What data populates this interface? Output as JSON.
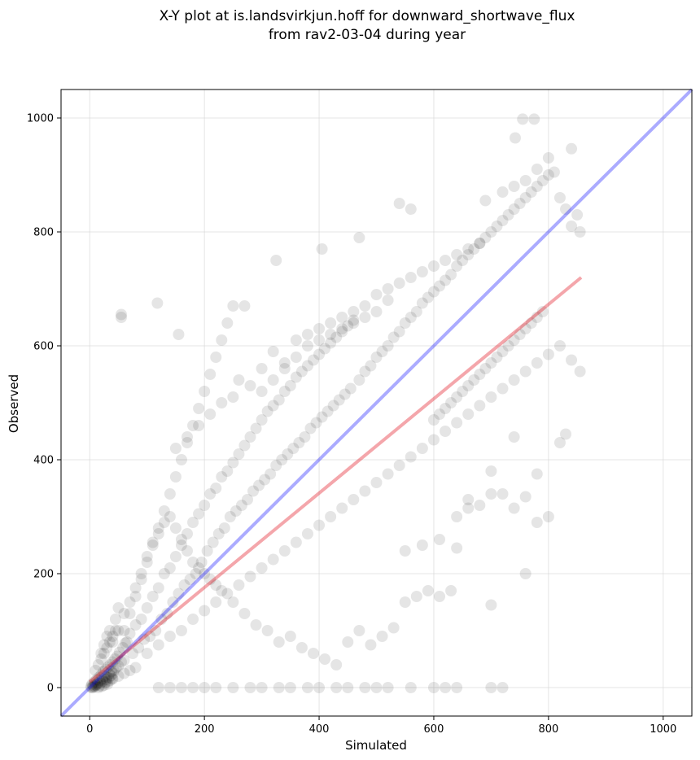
{
  "chart_data": {
    "type": "scatter",
    "title_line1": "X-Y plot at is.landsvirkjun.hoff for downward_shortwave_flux",
    "title_line2": "from rav2-03-04 during year",
    "xlabel": "Simulated",
    "ylabel": "Observed",
    "xlim": [
      -50,
      1050
    ],
    "ylim": [
      -50,
      1050
    ],
    "xticks": [
      0,
      200,
      400,
      600,
      800,
      1000
    ],
    "yticks": [
      0,
      200,
      400,
      600,
      800,
      1000
    ],
    "grid": true,
    "colors": {
      "points": "#000000",
      "identity_line": "#0000ff",
      "fit_line": "#e0000f"
    },
    "identity_line": {
      "x": [
        -50,
        1050
      ],
      "y": [
        -50,
        1050
      ]
    },
    "fit_line": {
      "x": [
        0,
        857
      ],
      "y": [
        10,
        720
      ]
    },
    "points": [
      [
        2,
        2
      ],
      [
        4,
        6
      ],
      [
        6,
        3
      ],
      [
        8,
        10
      ],
      [
        10,
        5
      ],
      [
        12,
        14
      ],
      [
        14,
        8
      ],
      [
        16,
        18
      ],
      [
        18,
        12
      ],
      [
        20,
        22
      ],
      [
        22,
        15
      ],
      [
        24,
        28
      ],
      [
        26,
        20
      ],
      [
        28,
        32
      ],
      [
        30,
        18
      ],
      [
        32,
        36
      ],
      [
        34,
        24
      ],
      [
        36,
        40
      ],
      [
        38,
        28
      ],
      [
        40,
        45
      ],
      [
        42,
        30
      ],
      [
        44,
        50
      ],
      [
        46,
        35
      ],
      [
        48,
        55
      ],
      [
        50,
        38
      ],
      [
        52,
        62
      ],
      [
        55,
        45
      ],
      [
        58,
        70
      ],
      [
        60,
        48
      ],
      [
        62,
        78
      ],
      [
        3,
        0
      ],
      [
        5,
        0
      ],
      [
        7,
        1
      ],
      [
        9,
        2
      ],
      [
        11,
        4
      ],
      [
        13,
        6
      ],
      [
        15,
        0
      ],
      [
        17,
        3
      ],
      [
        19,
        8
      ],
      [
        21,
        2
      ],
      [
        23,
        11
      ],
      [
        25,
        4
      ],
      [
        27,
        9
      ],
      [
        29,
        14
      ],
      [
        31,
        6
      ],
      [
        33,
        17
      ],
      [
        35,
        12
      ],
      [
        37,
        21
      ],
      [
        39,
        16
      ],
      [
        41,
        25
      ],
      [
        65,
        80
      ],
      [
        70,
        95
      ],
      [
        75,
        60
      ],
      [
        80,
        110
      ],
      [
        85,
        70
      ],
      [
        90,
        120
      ],
      [
        95,
        85
      ],
      [
        100,
        140
      ],
      [
        105,
        90
      ],
      [
        110,
        160
      ],
      [
        115,
        100
      ],
      [
        120,
        175
      ],
      [
        125,
        120
      ],
      [
        130,
        200
      ],
      [
        135,
        130
      ],
      [
        140,
        210
      ],
      [
        145,
        150
      ],
      [
        150,
        230
      ],
      [
        155,
        165
      ],
      [
        160,
        250
      ],
      [
        165,
        180
      ],
      [
        170,
        270
      ],
      [
        175,
        190
      ],
      [
        180,
        290
      ],
      [
        185,
        200
      ],
      [
        190,
        305
      ],
      [
        195,
        220
      ],
      [
        200,
        320
      ],
      [
        205,
        240
      ],
      [
        210,
        340
      ],
      [
        215,
        255
      ],
      [
        220,
        350
      ],
      [
        225,
        270
      ],
      [
        230,
        370
      ],
      [
        235,
        280
      ],
      [
        240,
        380
      ],
      [
        245,
        300
      ],
      [
        250,
        395
      ],
      [
        255,
        310
      ],
      [
        260,
        410
      ],
      [
        265,
        320
      ],
      [
        270,
        425
      ],
      [
        275,
        330
      ],
      [
        280,
        440
      ],
      [
        285,
        345
      ],
      [
        290,
        455
      ],
      [
        295,
        355
      ],
      [
        300,
        470
      ],
      [
        305,
        365
      ],
      [
        310,
        485
      ],
      [
        315,
        375
      ],
      [
        320,
        495
      ],
      [
        325,
        390
      ],
      [
        330,
        505
      ],
      [
        335,
        400
      ],
      [
        340,
        520
      ],
      [
        345,
        410
      ],
      [
        350,
        530
      ],
      [
        355,
        420
      ],
      [
        360,
        545
      ],
      [
        365,
        430
      ],
      [
        370,
        555
      ],
      [
        375,
        440
      ],
      [
        380,
        565
      ],
      [
        385,
        455
      ],
      [
        390,
        575
      ],
      [
        395,
        465
      ],
      [
        400,
        585
      ],
      [
        405,
        475
      ],
      [
        410,
        595
      ],
      [
        415,
        485
      ],
      [
        420,
        605
      ],
      [
        425,
        495
      ],
      [
        430,
        615
      ],
      [
        435,
        505
      ],
      [
        440,
        625
      ],
      [
        445,
        515
      ],
      [
        450,
        635
      ],
      [
        455,
        525
      ],
      [
        460,
        645
      ],
      [
        470,
        540
      ],
      [
        480,
        555
      ],
      [
        490,
        565
      ],
      [
        500,
        580
      ],
      [
        510,
        590
      ],
      [
        520,
        600
      ],
      [
        530,
        615
      ],
      [
        540,
        625
      ],
      [
        550,
        640
      ],
      [
        560,
        650
      ],
      [
        570,
        660
      ],
      [
        580,
        675
      ],
      [
        590,
        685
      ],
      [
        600,
        695
      ],
      [
        610,
        705
      ],
      [
        620,
        715
      ],
      [
        630,
        725
      ],
      [
        640,
        740
      ],
      [
        650,
        750
      ],
      [
        660,
        760
      ],
      [
        670,
        770
      ],
      [
        680,
        780
      ],
      [
        690,
        790
      ],
      [
        700,
        800
      ],
      [
        710,
        810
      ],
      [
        720,
        820
      ],
      [
        730,
        830
      ],
      [
        740,
        840
      ],
      [
        750,
        850
      ],
      [
        760,
        860
      ],
      [
        770,
        870
      ],
      [
        780,
        880
      ],
      [
        790,
        890
      ],
      [
        800,
        900
      ],
      [
        810,
        905
      ],
      [
        820,
        860
      ],
      [
        830,
        840
      ],
      [
        840,
        810
      ],
      [
        850,
        830
      ],
      [
        855,
        800
      ],
      [
        100,
        60
      ],
      [
        120,
        75
      ],
      [
        140,
        90
      ],
      [
        160,
        100
      ],
      [
        180,
        120
      ],
      [
        200,
        135
      ],
      [
        220,
        150
      ],
      [
        240,
        165
      ],
      [
        260,
        180
      ],
      [
        280,
        195
      ],
      [
        300,
        210
      ],
      [
        320,
        225
      ],
      [
        340,
        240
      ],
      [
        360,
        255
      ],
      [
        380,
        270
      ],
      [
        400,
        285
      ],
      [
        420,
        300
      ],
      [
        440,
        315
      ],
      [
        460,
        330
      ],
      [
        480,
        345
      ],
      [
        500,
        360
      ],
      [
        520,
        375
      ],
      [
        540,
        390
      ],
      [
        560,
        405
      ],
      [
        580,
        420
      ],
      [
        600,
        435
      ],
      [
        620,
        450
      ],
      [
        640,
        465
      ],
      [
        660,
        480
      ],
      [
        680,
        495
      ],
      [
        700,
        510
      ],
      [
        720,
        525
      ],
      [
        740,
        540
      ],
      [
        760,
        555
      ],
      [
        780,
        570
      ],
      [
        800,
        585
      ],
      [
        820,
        600
      ],
      [
        840,
        575
      ],
      [
        855,
        555
      ],
      [
        830,
        445
      ],
      [
        60,
        100
      ],
      [
        70,
        130
      ],
      [
        80,
        160
      ],
      [
        90,
        190
      ],
      [
        100,
        220
      ],
      [
        110,
        250
      ],
      [
        120,
        280
      ],
      [
        130,
        310
      ],
      [
        140,
        340
      ],
      [
        150,
        370
      ],
      [
        160,
        400
      ],
      [
        170,
        430
      ],
      [
        180,
        460
      ],
      [
        190,
        490
      ],
      [
        200,
        520
      ],
      [
        210,
        550
      ],
      [
        220,
        580
      ],
      [
        230,
        610
      ],
      [
        240,
        640
      ],
      [
        250,
        670
      ],
      [
        55,
        655
      ],
      [
        55,
        650
      ],
      [
        118,
        675
      ],
      [
        155,
        620
      ],
      [
        270,
        670
      ],
      [
        325,
        750
      ],
      [
        405,
        770
      ],
      [
        470,
        790
      ],
      [
        540,
        850
      ],
      [
        560,
        840
      ],
      [
        690,
        855
      ],
      [
        720,
        870
      ],
      [
        740,
        880
      ],
      [
        760,
        890
      ],
      [
        780,
        910
      ],
      [
        800,
        930
      ],
      [
        840,
        946
      ],
      [
        742,
        965
      ],
      [
        755,
        998
      ],
      [
        775,
        998
      ],
      [
        40,
        80
      ],
      [
        50,
        100
      ],
      [
        60,
        130
      ],
      [
        70,
        150
      ],
      [
        80,
        175
      ],
      [
        90,
        200
      ],
      [
        100,
        230
      ],
      [
        110,
        255
      ],
      [
        120,
        270
      ],
      [
        130,
        290
      ],
      [
        140,
        300
      ],
      [
        150,
        280
      ],
      [
        160,
        260
      ],
      [
        170,
        240
      ],
      [
        180,
        220
      ],
      [
        190,
        210
      ],
      [
        200,
        200
      ],
      [
        210,
        190
      ],
      [
        220,
        180
      ],
      [
        230,
        170
      ],
      [
        250,
        150
      ],
      [
        270,
        130
      ],
      [
        290,
        110
      ],
      [
        310,
        100
      ],
      [
        330,
        80
      ],
      [
        350,
        90
      ],
      [
        370,
        70
      ],
      [
        390,
        60
      ],
      [
        410,
        50
      ],
      [
        430,
        40
      ],
      [
        450,
        80
      ],
      [
        470,
        100
      ],
      [
        490,
        75
      ],
      [
        510,
        90
      ],
      [
        530,
        105
      ],
      [
        550,
        150
      ],
      [
        570,
        160
      ],
      [
        590,
        170
      ],
      [
        610,
        160
      ],
      [
        630,
        170
      ],
      [
        120,
        0
      ],
      [
        140,
        0
      ],
      [
        160,
        0
      ],
      [
        180,
        0
      ],
      [
        200,
        0
      ],
      [
        220,
        0
      ],
      [
        250,
        0
      ],
      [
        280,
        0
      ],
      [
        300,
        0
      ],
      [
        330,
        0
      ],
      [
        350,
        0
      ],
      [
        380,
        0
      ],
      [
        400,
        0
      ],
      [
        430,
        0
      ],
      [
        450,
        0
      ],
      [
        480,
        0
      ],
      [
        500,
        0
      ],
      [
        520,
        0
      ],
      [
        560,
        0
      ],
      [
        600,
        0
      ],
      [
        620,
        0
      ],
      [
        640,
        0
      ],
      [
        700,
        0
      ],
      [
        720,
        0
      ],
      [
        550,
        240
      ],
      [
        580,
        250
      ],
      [
        610,
        260
      ],
      [
        640,
        245
      ],
      [
        660,
        330
      ],
      [
        680,
        320
      ],
      [
        700,
        145
      ],
      [
        700,
        340
      ],
      [
        720,
        340
      ],
      [
        740,
        315
      ],
      [
        760,
        335
      ],
      [
        780,
        375
      ],
      [
        800,
        300
      ],
      [
        760,
        200
      ],
      [
        820,
        430
      ],
      [
        780,
        290
      ],
      [
        740,
        440
      ],
      [
        700,
        380
      ],
      [
        660,
        315
      ],
      [
        640,
        300
      ],
      [
        300,
        560
      ],
      [
        320,
        590
      ],
      [
        340,
        570
      ],
      [
        360,
        610
      ],
      [
        380,
        620
      ],
      [
        400,
        630
      ],
      [
        420,
        640
      ],
      [
        440,
        650
      ],
      [
        460,
        660
      ],
      [
        480,
        670
      ],
      [
        500,
        690
      ],
      [
        520,
        700
      ],
      [
        540,
        710
      ],
      [
        560,
        720
      ],
      [
        580,
        730
      ],
      [
        600,
        740
      ],
      [
        620,
        750
      ],
      [
        640,
        760
      ],
      [
        660,
        770
      ],
      [
        680,
        780
      ],
      [
        150,
        420
      ],
      [
        170,
        440
      ],
      [
        190,
        460
      ],
      [
        210,
        480
      ],
      [
        230,
        500
      ],
      [
        250,
        510
      ],
      [
        260,
        540
      ],
      [
        280,
        530
      ],
      [
        300,
        520
      ],
      [
        320,
        540
      ],
      [
        340,
        560
      ],
      [
        360,
        580
      ],
      [
        380,
        600
      ],
      [
        400,
        610
      ],
      [
        420,
        620
      ],
      [
        440,
        630
      ],
      [
        460,
        640
      ],
      [
        480,
        650
      ],
      [
        500,
        660
      ],
      [
        520,
        680
      ],
      [
        600,
        470
      ],
      [
        610,
        480
      ],
      [
        620,
        490
      ],
      [
        630,
        500
      ],
      [
        640,
        510
      ],
      [
        650,
        520
      ],
      [
        660,
        530
      ],
      [
        670,
        540
      ],
      [
        680,
        550
      ],
      [
        690,
        560
      ],
      [
        700,
        570
      ],
      [
        710,
        580
      ],
      [
        720,
        590
      ],
      [
        730,
        600
      ],
      [
        740,
        610
      ],
      [
        750,
        620
      ],
      [
        760,
        630
      ],
      [
        770,
        640
      ],
      [
        780,
        650
      ],
      [
        790,
        660
      ],
      [
        10,
        30
      ],
      [
        15,
        40
      ],
      [
        20,
        50
      ],
      [
        25,
        60
      ],
      [
        30,
        70
      ],
      [
        35,
        80
      ],
      [
        40,
        90
      ],
      [
        45,
        100
      ],
      [
        20,
        60
      ],
      [
        25,
        75
      ],
      [
        30,
        90
      ],
      [
        35,
        100
      ],
      [
        45,
        120
      ],
      [
        50,
        140
      ],
      [
        30,
        10
      ],
      [
        40,
        15
      ],
      [
        50,
        20
      ],
      [
        60,
        25
      ],
      [
        70,
        30
      ],
      [
        80,
        35
      ]
    ]
  }
}
